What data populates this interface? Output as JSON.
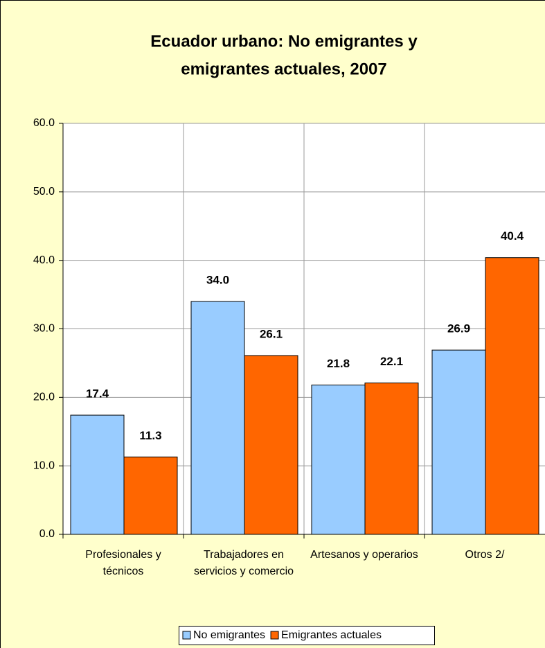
{
  "chart_data": {
    "type": "bar",
    "title": [
      "Ecuador urbano: No emigrantes y",
      "emigrantes actuales, 2007"
    ],
    "categories": [
      "Profesionales y técnicos",
      "Trabajadores en servicios y comercio",
      "Artesanos y operarios",
      "Otros  2/"
    ],
    "series": [
      {
        "name": "No emigrantes",
        "color": "#99ccff",
        "values": [
          17.4,
          34.0,
          21.8,
          26.9
        ],
        "value_labels": [
          "17.4",
          "34.0",
          "21.8",
          "26.9"
        ]
      },
      {
        "name": "Emigrantes actuales",
        "color": "#ff6600",
        "values": [
          11.3,
          26.1,
          22.1,
          40.4
        ],
        "value_labels": [
          "11.3",
          "26.1",
          "22.1",
          "40.4"
        ]
      }
    ],
    "ylim": [
      0,
      60
    ],
    "yticks": [
      {
        "value": 0,
        "label": "0.0"
      },
      {
        "value": 10,
        "label": "10.0"
      },
      {
        "value": 20,
        "label": "20.0"
      },
      {
        "value": 30,
        "label": "30.0"
      },
      {
        "value": 40,
        "label": "40.0"
      },
      {
        "value": 50,
        "label": "50.0"
      },
      {
        "value": 60,
        "label": "60.0"
      }
    ],
    "grid": true,
    "legend": "bottom"
  }
}
